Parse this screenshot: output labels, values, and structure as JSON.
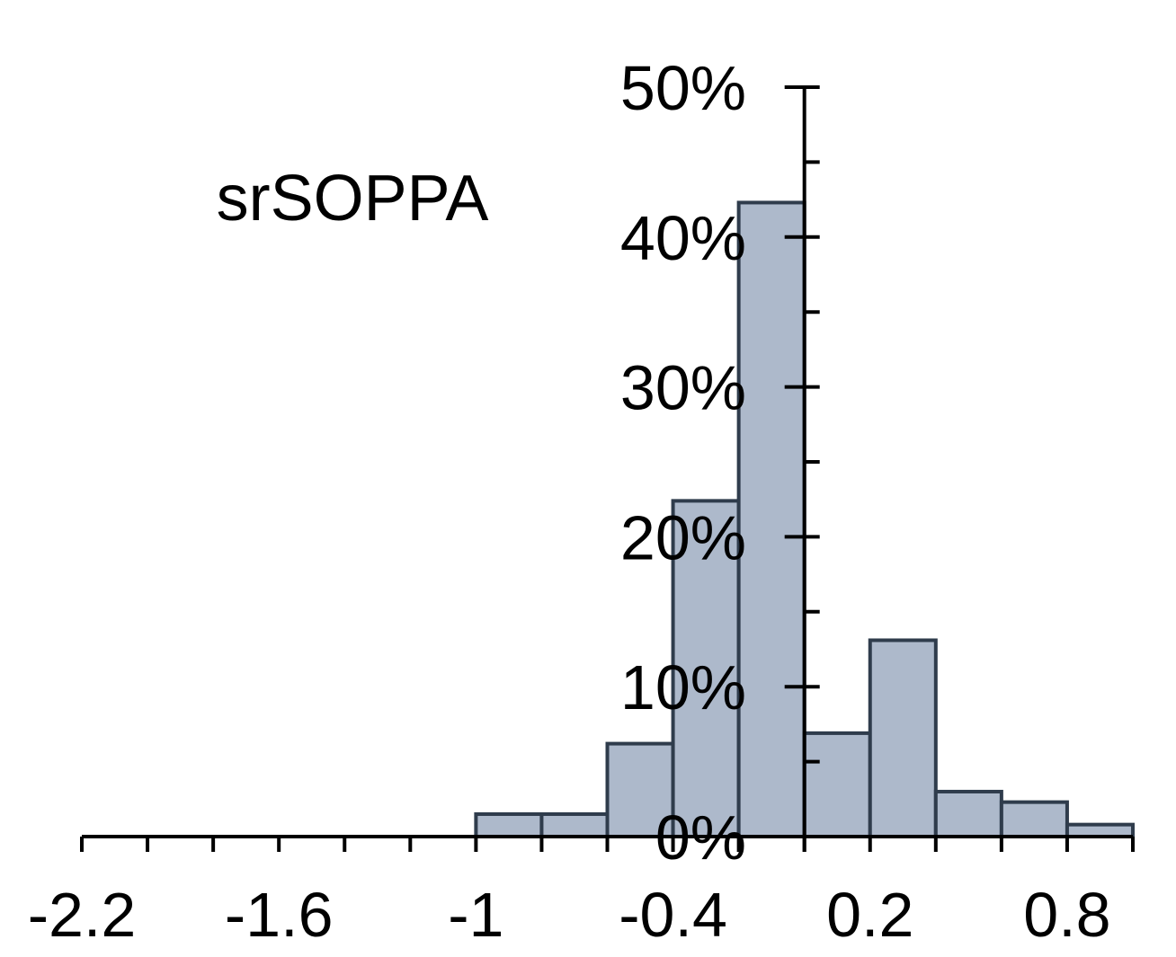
{
  "chart_data": {
    "type": "bar",
    "title": "srSOPPA",
    "xlabel": "",
    "ylabel": "",
    "bin_width": 0.2,
    "bin_starts": [
      -1.0,
      -0.8,
      -0.6,
      -0.4,
      -0.2,
      0.0,
      0.2,
      0.4,
      0.6,
      0.8
    ],
    "values": [
      1.5,
      1.5,
      6.2,
      22.4,
      42.3,
      6.9,
      13.1,
      3.0,
      2.3,
      0.8
    ],
    "xlim": [
      -2.2,
      1.0
    ],
    "ylim": [
      0,
      50
    ],
    "x_ticks": [
      "-2.2",
      "-1.6",
      "-1",
      "-0.4",
      "0.2",
      "0.8"
    ],
    "x_tick_values": [
      -2.2,
      -1.6,
      -1.0,
      -0.4,
      0.2,
      0.8
    ],
    "y_ticks": [
      "0%",
      "10%",
      "20%",
      "30%",
      "40%",
      "50%"
    ],
    "y_tick_values": [
      0,
      10,
      20,
      30,
      40,
      50
    ],
    "y_axis_at_x": 0.0,
    "grid": false,
    "bar_fill": "#adb9cb",
    "bar_stroke": "#2f3c4c"
  }
}
